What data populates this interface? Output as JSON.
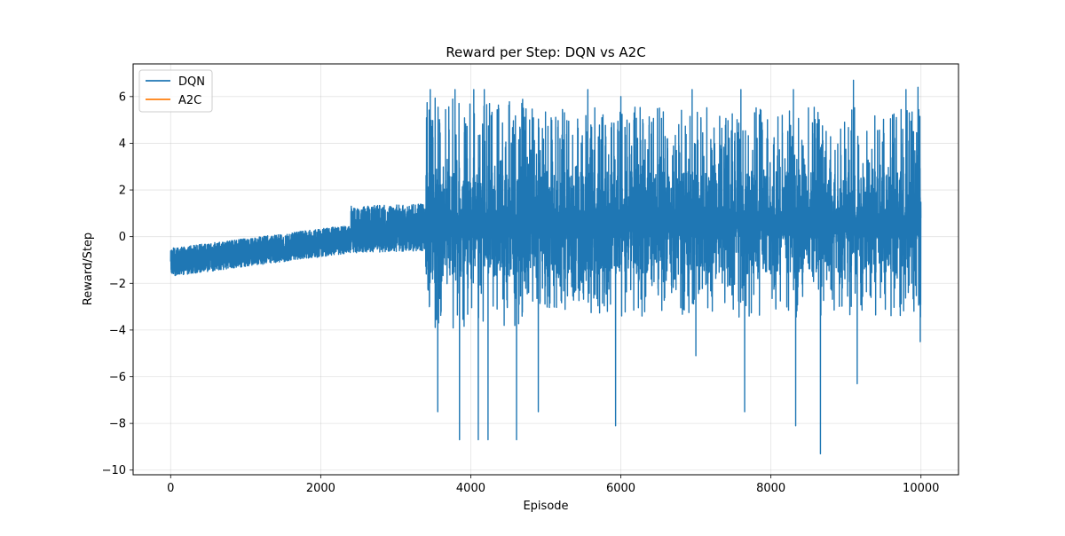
{
  "chart_data": {
    "type": "line",
    "title": "Reward per Step: DQN vs A2C",
    "xlabel": "Episode",
    "ylabel": "Reward/Step",
    "xlim": [
      -500,
      10500
    ],
    "ylim": [
      -10.2,
      7.4
    ],
    "xticks": [
      0,
      2000,
      4000,
      6000,
      8000,
      10000
    ],
    "xtick_labels": [
      "0",
      "2000",
      "4000",
      "6000",
      "8000",
      "10000"
    ],
    "yticks": [
      -10,
      -8,
      -6,
      -4,
      -2,
      0,
      2,
      4,
      6
    ],
    "ytick_labels": [
      "−10",
      "−8",
      "−6",
      "−4",
      "−2",
      "0",
      "2",
      "4",
      "6"
    ],
    "grid": true,
    "legend_position": "top-left",
    "series": [
      {
        "name": "DQN",
        "color": "#1f77b4",
        "episodes": 10000,
        "phases": [
          {
            "from": 0,
            "to": 2400,
            "baseline_start": -1.1,
            "baseline_end": -0.1,
            "spread": 0.6,
            "peak": 0.9
          },
          {
            "from": 2400,
            "to": 3400,
            "baseline_start": 0.3,
            "baseline_end": 0.4,
            "spread": 1.0,
            "peak": 2.2
          },
          {
            "from": 3400,
            "to": 4700,
            "baseline_start": 0.5,
            "baseline_end": 0.5,
            "spread": 5.0,
            "peak": 6.3
          },
          {
            "from": 4700,
            "to": 10000,
            "baseline_start": 0.6,
            "baseline_end": 0.6,
            "spread": 4.5,
            "peak": 6.7
          }
        ],
        "extremes": [
          {
            "x": 3460,
            "y": 6.3
          },
          {
            "x": 3560,
            "y": -7.5
          },
          {
            "x": 3790,
            "y": 6.3
          },
          {
            "x": 3850,
            "y": -8.7
          },
          {
            "x": 4040,
            "y": 6.3
          },
          {
            "x": 4100,
            "y": -8.7
          },
          {
            "x": 4180,
            "y": 6.3
          },
          {
            "x": 4230,
            "y": -8.7
          },
          {
            "x": 4510,
            "y": 5.0
          },
          {
            "x": 4610,
            "y": -8.7
          },
          {
            "x": 4900,
            "y": -7.5
          },
          {
            "x": 5560,
            "y": 6.3
          },
          {
            "x": 5930,
            "y": -8.1
          },
          {
            "x": 6000,
            "y": 6.0
          },
          {
            "x": 6950,
            "y": 6.3
          },
          {
            "x": 7000,
            "y": -5.1
          },
          {
            "x": 7600,
            "y": 6.3
          },
          {
            "x": 7650,
            "y": -7.5
          },
          {
            "x": 8300,
            "y": 6.3
          },
          {
            "x": 8330,
            "y": -8.1
          },
          {
            "x": 8660,
            "y": -9.3
          },
          {
            "x": 9100,
            "y": 6.7
          },
          {
            "x": 9150,
            "y": -6.3
          },
          {
            "x": 9800,
            "y": 6.3
          },
          {
            "x": 9960,
            "y": 6.4
          },
          {
            "x": 9990,
            "y": -4.5
          }
        ],
        "end_value": 0.8
      },
      {
        "name": "A2C",
        "color": "#ff7f0e",
        "x": [],
        "y": []
      }
    ]
  }
}
